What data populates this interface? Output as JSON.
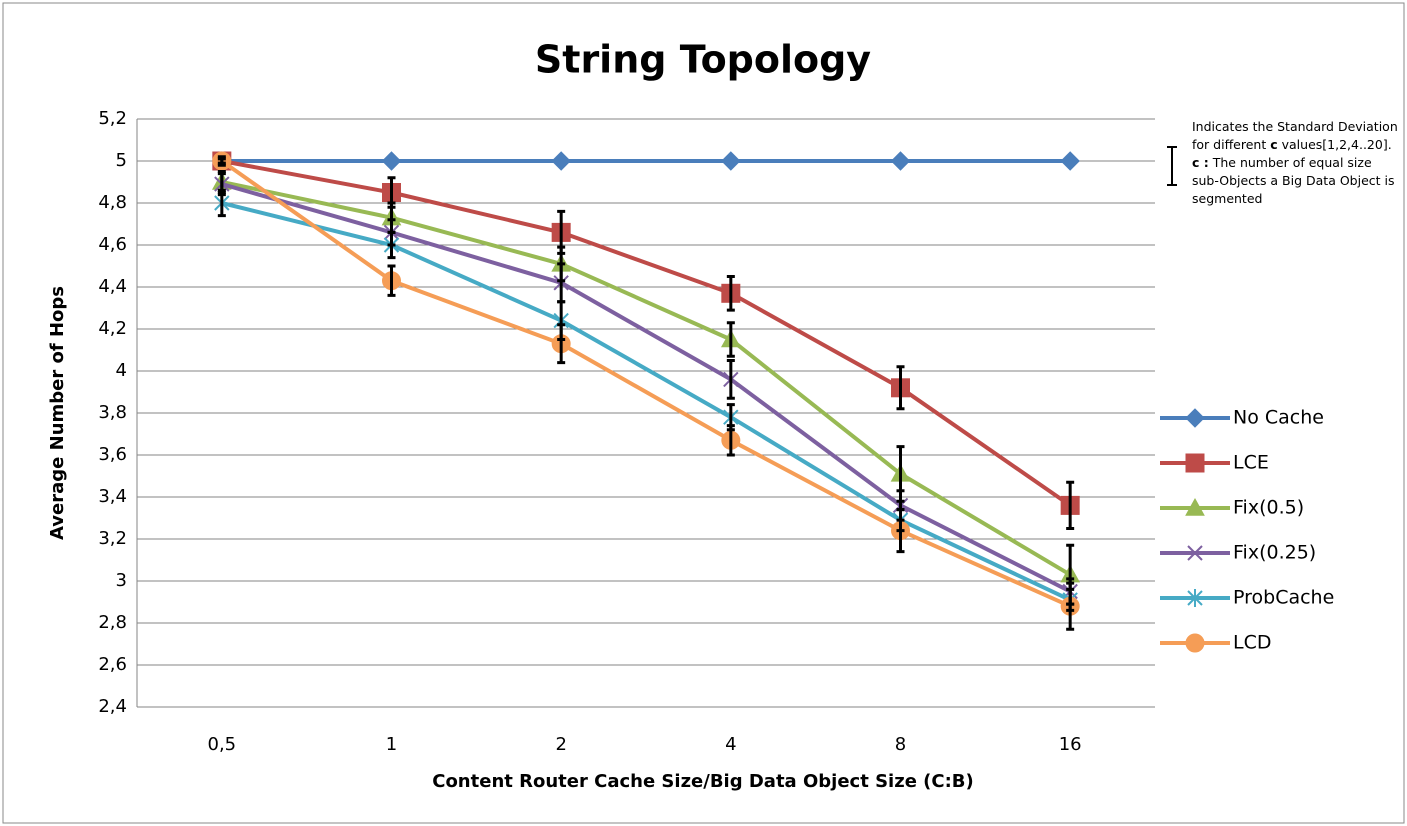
{
  "chart_data": {
    "type": "line",
    "title": "String Topology",
    "x_label": "Content Router Cache Size/Big Data Object Size (C:B)",
    "y_label": "Average Number of Hops",
    "categories": [
      "0,5",
      "1",
      "2",
      "4",
      "8",
      "16"
    ],
    "ylim": [
      2.4,
      5.2
    ],
    "yticks": [
      {
        "value": 2.4,
        "label": "2,4"
      },
      {
        "value": 2.6,
        "label": "2,6"
      },
      {
        "value": 2.8,
        "label": "2,8"
      },
      3,
      {
        "value": 3.2,
        "label": "3,2"
      },
      {
        "value": 3.4,
        "label": "3,4"
      },
      {
        "value": 3.6,
        "label": "3,6"
      },
      {
        "value": 3.8,
        "label": "3,8"
      },
      4,
      {
        "value": 4.2,
        "label": "4,2"
      },
      {
        "value": 4.4,
        "label": "4,4"
      },
      {
        "value": 4.6,
        "label": "4,6"
      },
      {
        "value": 4.8,
        "label": "4,8"
      },
      5,
      {
        "value": 5.2,
        "label": "5,2"
      }
    ],
    "grid": true,
    "legend": "right",
    "annotation": [
      "Indicates the Standard Deviation for different ",
      "c",
      " values[1,2,4..20].",
      "c :",
      " The number of equal size sub-Objects a Big Data Object is segmented"
    ],
    "series": [
      {
        "name": "No Cache",
        "color": "#4a7ebb",
        "marker": "diamond",
        "values": [
          5,
          5,
          5,
          5,
          5,
          5
        ]
      },
      {
        "name": "LCE",
        "color": "#be4b48",
        "marker": "square",
        "values": [
          5,
          4.85,
          4.66,
          4.37,
          3.92,
          3.36
        ],
        "errors": [
          0.02,
          0.07,
          0.1,
          0.08,
          0.1,
          0.11
        ]
      },
      {
        "name": "Fix(0.5)",
        "color": "#98b954",
        "marker": "triangle",
        "values": [
          4.9,
          4.73,
          4.51,
          4.15,
          3.51,
          3.03
        ],
        "errors": [
          0.05,
          0.07,
          0.08,
          0.08,
          0.13,
          0.14
        ]
      },
      {
        "name": "Fix(0.25)",
        "color": "#7d60a0",
        "marker": "x",
        "values": [
          4.89,
          4.66,
          4.42,
          3.96,
          3.36,
          2.95
        ],
        "errors": [
          0.05,
          0.06,
          0.09,
          0.09,
          0.07,
          0.06
        ]
      },
      {
        "name": "ProbCache",
        "color": "#46aac5",
        "marker": "star",
        "values": [
          4.8,
          4.6,
          4.24,
          3.78,
          3.29,
          2.91
        ],
        "errors": [
          0.06,
          0.06,
          0.09,
          0.06,
          0.05,
          0.05
        ]
      },
      {
        "name": "LCD",
        "color": "#f59d56",
        "marker": "circle",
        "values": [
          5,
          4.43,
          4.13,
          3.67,
          3.24,
          2.88
        ],
        "errors": [
          0.01,
          0.07,
          0.09,
          0.07,
          0.1,
          0.11
        ]
      }
    ]
  }
}
